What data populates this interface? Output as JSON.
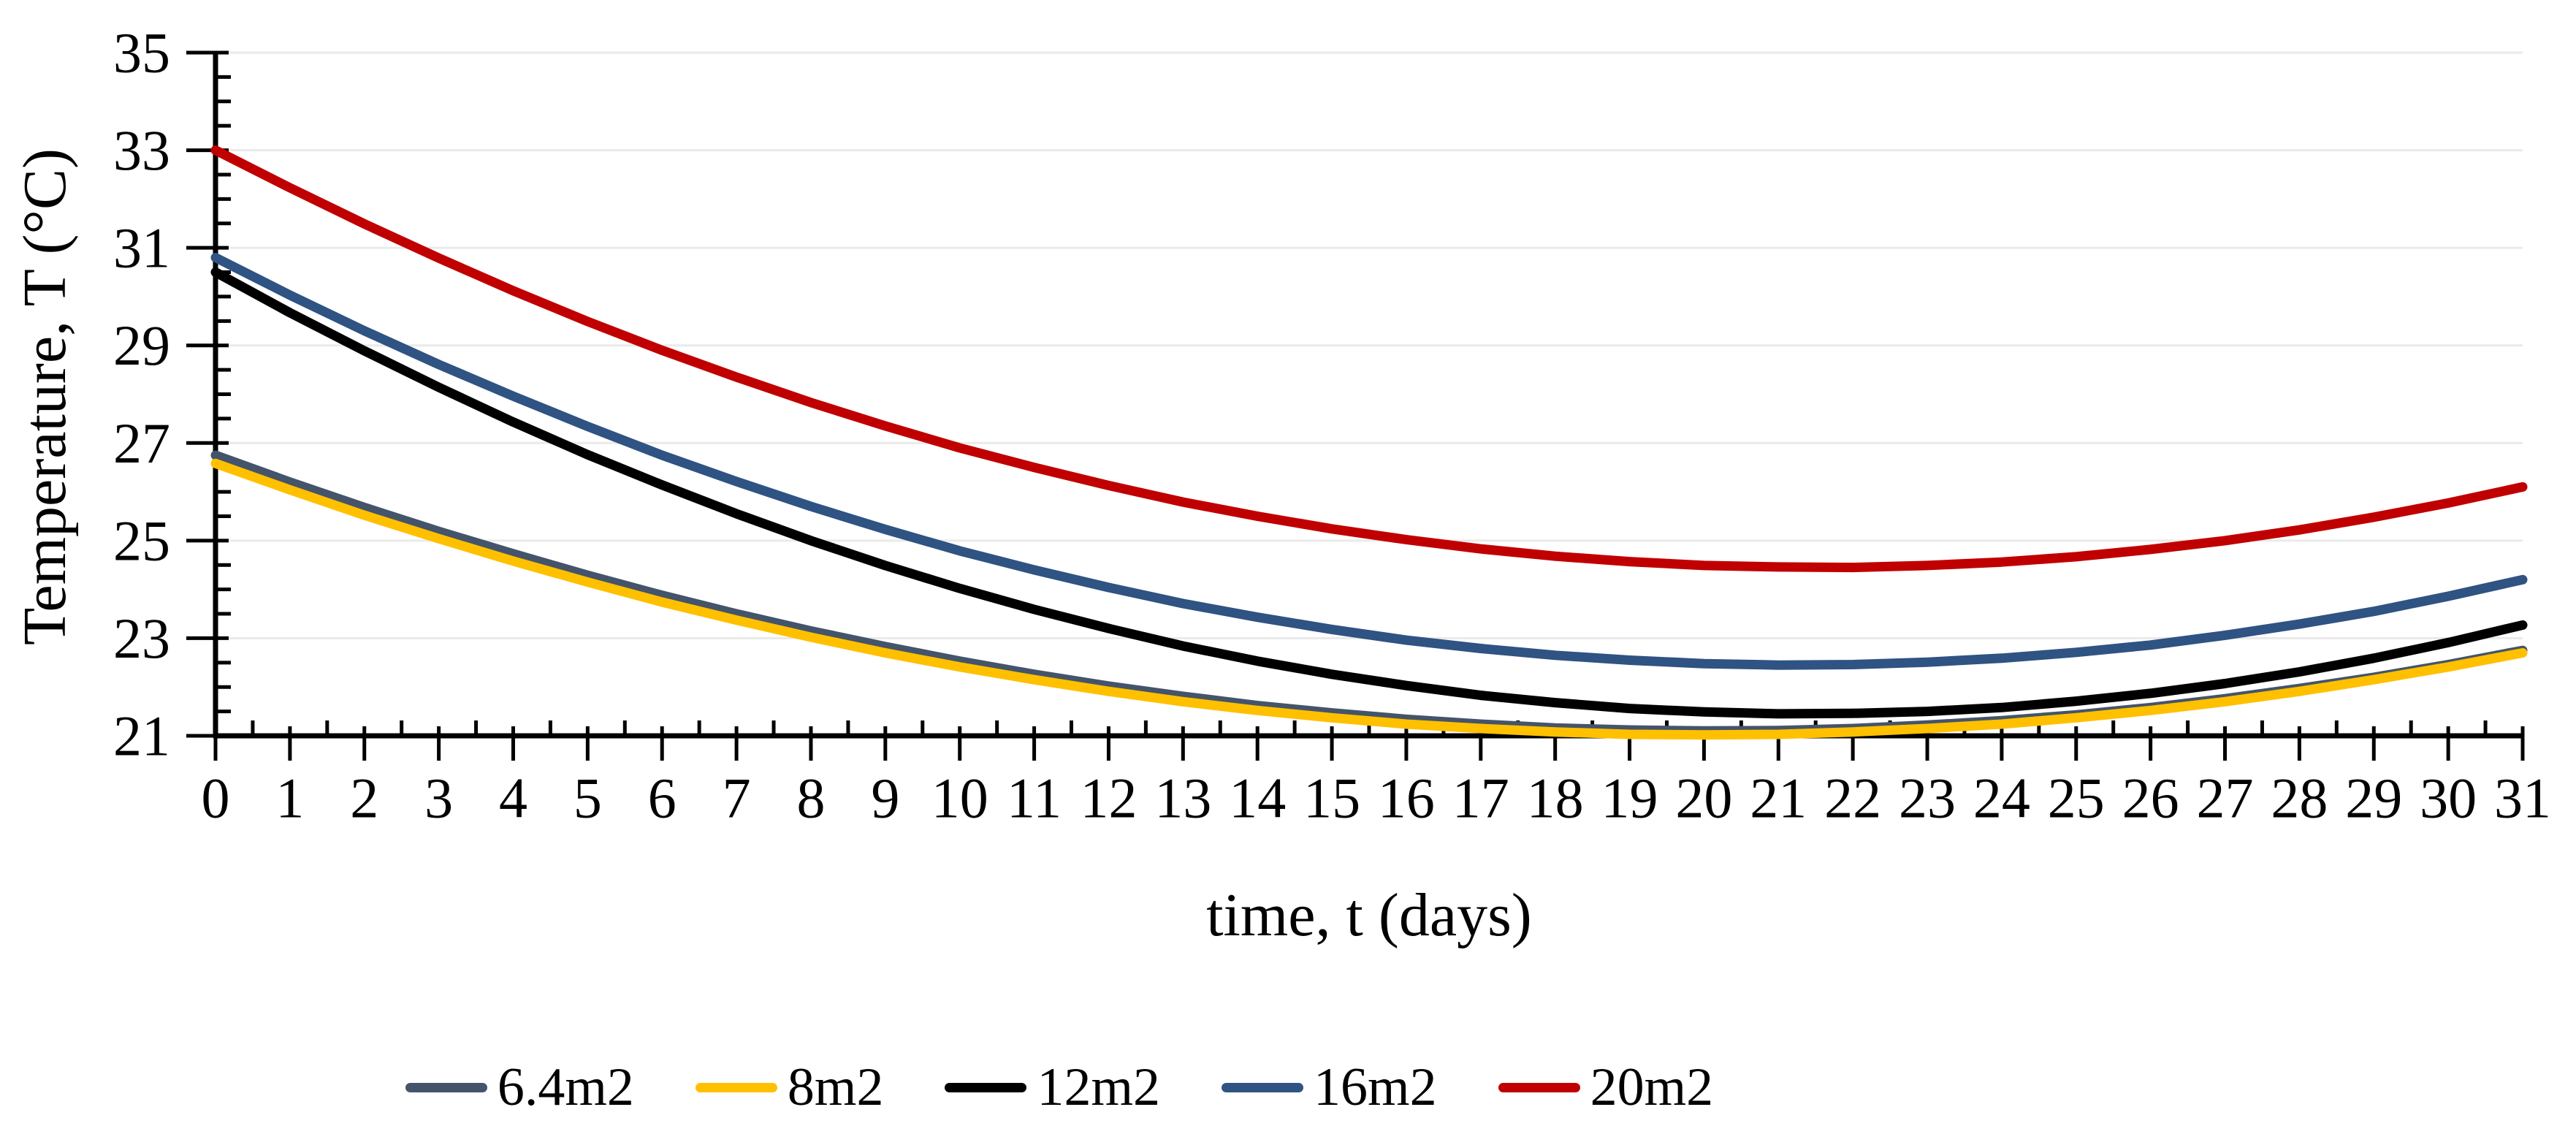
{
  "chart_data": {
    "type": "line",
    "title": "",
    "xlabel": "time, t (days)",
    "ylabel": "Temperature, T (°C)",
    "xlim": [
      0,
      31
    ],
    "ylim": [
      21,
      35
    ],
    "x_major_tick_step": 1,
    "x_minor_tick_step": 0.5,
    "y_major_tick_step": 2,
    "y_minor_tick_step": 0.5,
    "grid": "horizontal-major-only",
    "legend_position": "bottom-center",
    "x_tick_labels": [
      "0",
      "1",
      "2",
      "3",
      "4",
      "5",
      "6",
      "7",
      "8",
      "9",
      "10",
      "11",
      "12",
      "13",
      "14",
      "15",
      "16",
      "17",
      "18",
      "19",
      "20",
      "21",
      "22",
      "23",
      "24",
      "25",
      "26",
      "27",
      "28",
      "29",
      "30",
      "31"
    ],
    "y_tick_labels": [
      "21",
      "23",
      "25",
      "27",
      "29",
      "31",
      "33",
      "35"
    ],
    "x": [
      0,
      1,
      2,
      3,
      4,
      5,
      6,
      7,
      8,
      9,
      10,
      11,
      12,
      13,
      14,
      15,
      16,
      17,
      18,
      19,
      20,
      21,
      22,
      23,
      24,
      25,
      26,
      27,
      28,
      29,
      30,
      31
    ],
    "series": [
      {
        "name": "6.4m2",
        "color": "#44546A",
        "values": [
          26.75,
          26.2,
          25.68,
          25.19,
          24.73,
          24.29,
          23.88,
          23.5,
          23.15,
          22.83,
          22.53,
          22.26,
          22.02,
          21.81,
          21.62,
          21.47,
          21.34,
          21.24,
          21.16,
          21.12,
          21.1,
          21.11,
          21.15,
          21.22,
          21.31,
          21.43,
          21.58,
          21.76,
          21.97,
          22.2,
          22.46,
          22.75
        ]
      },
      {
        "name": "8m2",
        "color": "#FFC000",
        "values": [
          26.58,
          26.04,
          25.52,
          25.04,
          24.58,
          24.15,
          23.74,
          23.37,
          23.02,
          22.7,
          22.41,
          22.15,
          21.91,
          21.7,
          21.52,
          21.37,
          21.24,
          21.15,
          21.08,
          21.03,
          21.02,
          21.03,
          21.08,
          21.15,
          21.24,
          21.37,
          21.52,
          21.7,
          21.91,
          22.15,
          22.41,
          22.7
        ]
      },
      {
        "name": "12m2",
        "color": "#000000",
        "values": [
          30.5,
          29.67,
          28.89,
          28.14,
          27.43,
          26.76,
          26.14,
          25.55,
          25.0,
          24.49,
          24.02,
          23.59,
          23.2,
          22.84,
          22.53,
          22.26,
          22.03,
          21.83,
          21.68,
          21.56,
          21.49,
          21.45,
          21.46,
          21.5,
          21.58,
          21.71,
          21.87,
          22.07,
          22.31,
          22.59,
          22.91,
          23.27
        ]
      },
      {
        "name": "16m2",
        "color": "#2F5382",
        "values": [
          30.8,
          30.03,
          29.3,
          28.61,
          27.96,
          27.34,
          26.75,
          26.21,
          25.7,
          25.23,
          24.79,
          24.4,
          24.04,
          23.71,
          23.43,
          23.18,
          22.96,
          22.79,
          22.65,
          22.55,
          22.48,
          22.45,
          22.46,
          22.51,
          22.59,
          22.71,
          22.86,
          23.06,
          23.29,
          23.55,
          23.86,
          24.2
        ]
      },
      {
        "name": "20m2",
        "color": "#C00000",
        "values": [
          33.0,
          32.23,
          31.49,
          30.79,
          30.12,
          29.49,
          28.9,
          28.35,
          27.83,
          27.35,
          26.9,
          26.5,
          26.13,
          25.79,
          25.5,
          25.24,
          25.02,
          24.83,
          24.68,
          24.57,
          24.49,
          24.46,
          24.45,
          24.49,
          24.56,
          24.67,
          24.82,
          25.0,
          25.22,
          25.48,
          25.77,
          26.1
        ]
      }
    ]
  },
  "style": {
    "axis_color": "#000000",
    "gridline_color": "#EAEAEA",
    "background": "#FFFFFF",
    "line_width": 13
  }
}
